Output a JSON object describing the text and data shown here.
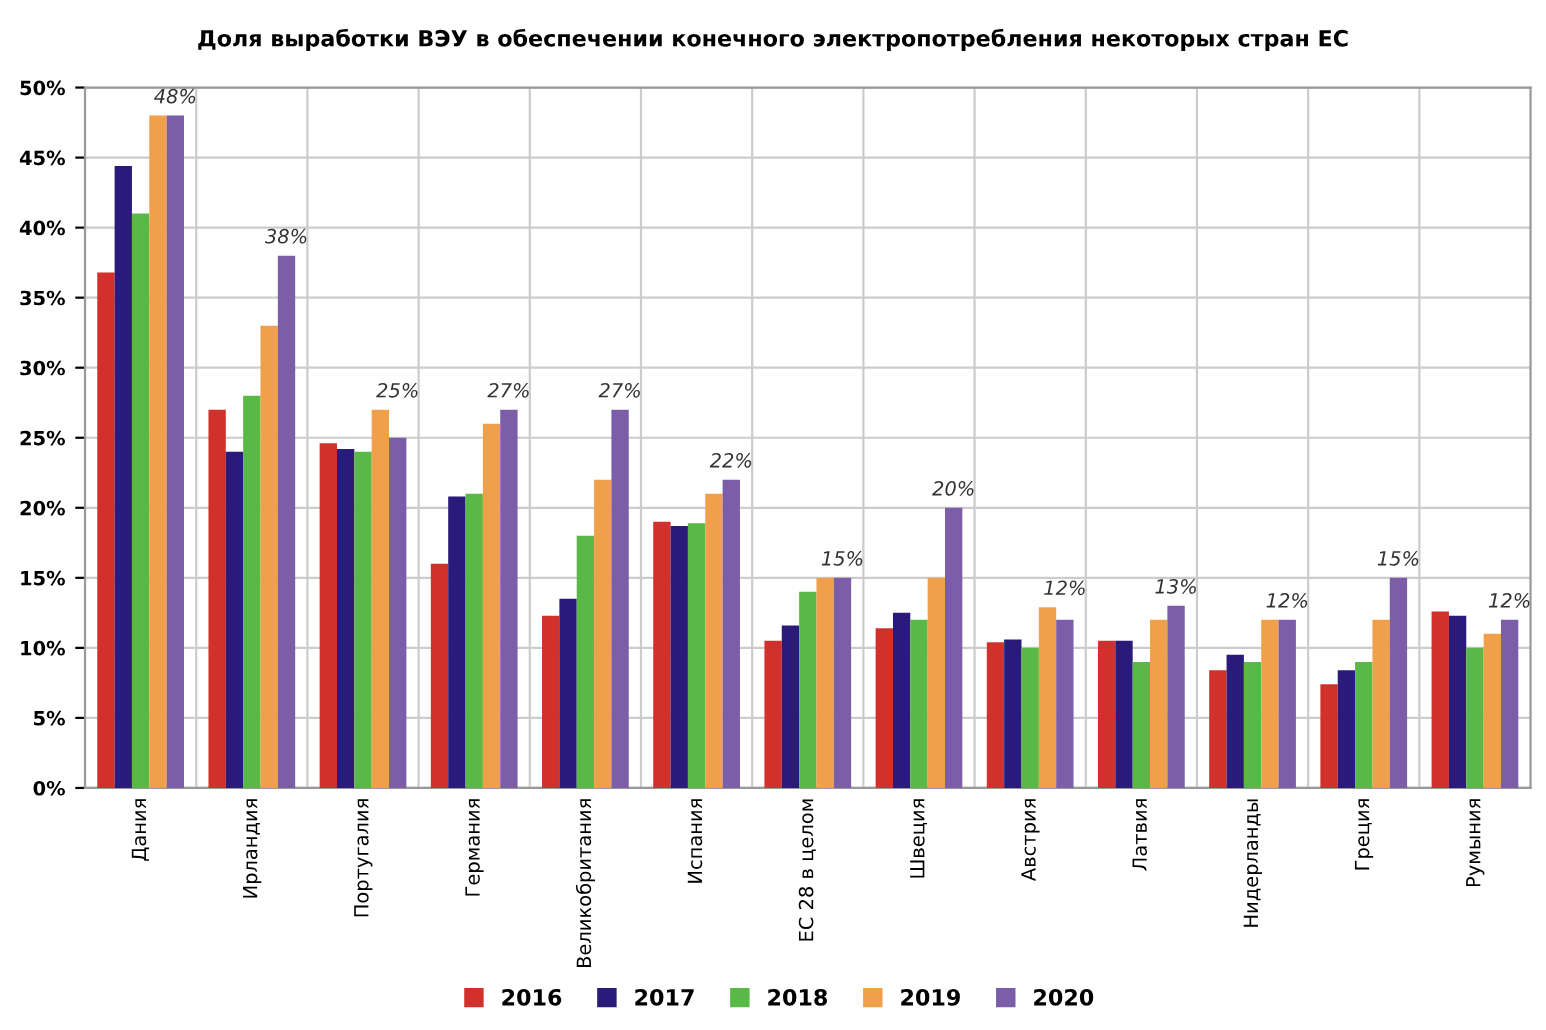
{
  "chart_data": {
    "type": "bar",
    "title": "Доля выработки ВЭУ в обеспечении конечного электропотребления некоторых стран ЕС",
    "categories": [
      "Дания",
      "Ирландия",
      "Португалия",
      "Германия",
      "Великобритания",
      "Испания",
      "ЕС 28 в целом",
      "Швеция",
      "Австрия",
      "Латвия",
      "Нидерланды",
      "Греция",
      "Румыния"
    ],
    "series": [
      {
        "name": "2016",
        "color": "#d0312d",
        "values": [
          36.8,
          27,
          24.6,
          16,
          12.3,
          19,
          10.5,
          11.4,
          10.4,
          10.5,
          8.4,
          7.4,
          12.6
        ]
      },
      {
        "name": "2017",
        "color": "#2a1a7a",
        "values": [
          44.4,
          24,
          24.2,
          20.8,
          13.5,
          18.7,
          11.6,
          12.5,
          10.6,
          10.5,
          9.5,
          8.4,
          12.3
        ]
      },
      {
        "name": "2018",
        "color": "#5ab946",
        "values": [
          41,
          28,
          24,
          21,
          18,
          18.9,
          14,
          12,
          10,
          9,
          9,
          9,
          10
        ]
      },
      {
        "name": "2019",
        "color": "#f0a04b",
        "values": [
          48,
          33,
          27,
          26,
          22,
          21,
          15,
          15,
          12.9,
          12,
          12,
          12,
          11
        ]
      },
      {
        "name": "2020",
        "color": "#7b5ea7",
        "values": [
          48,
          38,
          25,
          27,
          27,
          22,
          15,
          20,
          12,
          13,
          12,
          15,
          12
        ],
        "value_labels": [
          "48%",
          "38%",
          "25%",
          "27%",
          "27%",
          "22%",
          "15%",
          "20%",
          "12%",
          "13%",
          "12%",
          "15%",
          "12%"
        ]
      }
    ],
    "ylim": [
      0,
      50
    ],
    "yticks": [
      {
        "value": 0,
        "label": "0%"
      },
      {
        "value": 5,
        "label": "5%"
      },
      {
        "value": 10,
        "label": "10%"
      },
      {
        "value": 15,
        "label": "15%"
      },
      {
        "value": 20,
        "label": "20%"
      },
      {
        "value": 25,
        "label": "25%"
      },
      {
        "value": 30,
        "label": "30%"
      },
      {
        "value": 35,
        "label": "35%"
      },
      {
        "value": 40,
        "label": "40%"
      },
      {
        "value": 45,
        "label": "45%"
      },
      {
        "value": 50,
        "label": "50%"
      }
    ],
    "grid": true,
    "legend": "bottom"
  }
}
